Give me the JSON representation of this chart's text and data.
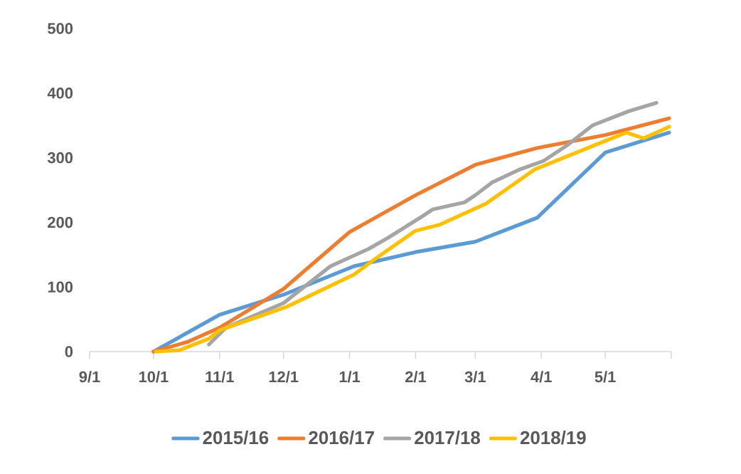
{
  "chart_data": {
    "type": "line",
    "xlim": [
      "2018-09-01",
      "2019-06-01"
    ],
    "xticks": [
      {
        "value": "2018-09-01",
        "label": "9/1"
      },
      {
        "value": "2018-10-01",
        "label": "10/1"
      },
      {
        "value": "2018-11-01",
        "label": "11/1"
      },
      {
        "value": "2018-12-01",
        "label": "12/1"
      },
      {
        "value": "2019-01-01",
        "label": "1/1"
      },
      {
        "value": "2019-02-01",
        "label": "2/1"
      },
      {
        "value": "2019-03-01",
        "label": "3/1"
      },
      {
        "value": "2019-04-01",
        "label": "4/1"
      },
      {
        "value": "2019-05-01",
        "label": "5/1"
      },
      {
        "value": "2019-06-01",
        "label": null
      }
    ],
    "ylim": [
      0,
      500
    ],
    "yticks": [
      0,
      100,
      200,
      300,
      400,
      500
    ],
    "legend": "bottom",
    "series": [
      {
        "name": "2015/16",
        "color": "#5b9bd5",
        "x": [
          "2018-10-01",
          "2018-11-01",
          "2018-12-01",
          "2019-01-03",
          "2019-02-01",
          "2019-03-01",
          "2019-03-30",
          "2019-05-01",
          "2019-05-31"
        ],
        "values": [
          0,
          57,
          88,
          132,
          154,
          170,
          207,
          308,
          339
        ]
      },
      {
        "name": "2016/17",
        "color": "#ed7d31",
        "x": [
          "2018-10-01",
          "2018-10-17",
          "2018-11-01",
          "2018-12-01",
          "2019-01-01",
          "2019-02-01",
          "2019-03-01",
          "2019-03-30",
          "2019-05-01",
          "2019-05-31"
        ],
        "values": [
          0,
          15,
          37,
          97,
          185,
          242,
          289,
          315,
          335,
          361
        ]
      },
      {
        "name": "2017/18",
        "color": "#a5a5a5",
        "x": [
          "2018-10-27",
          "2018-11-04",
          "2018-12-01",
          "2018-12-23",
          "2019-01-10",
          "2019-01-19",
          "2019-02-04",
          "2019-02-09",
          "2019-02-24",
          "2019-03-01",
          "2019-03-09",
          "2019-03-22",
          "2019-04-02",
          "2019-04-13",
          "2019-04-25",
          "2019-05-12",
          "2019-05-25"
        ],
        "values": [
          11,
          37,
          75,
          132,
          159,
          176,
          209,
          220,
          231,
          242,
          262,
          282,
          295,
          319,
          350,
          372,
          385
        ]
      },
      {
        "name": "2018/19",
        "color": "#ffc000",
        "x": [
          "2018-10-02",
          "2018-10-13",
          "2018-10-27",
          "2018-11-01",
          "2018-12-03",
          "2019-01-03",
          "2019-01-12",
          "2019-02-01",
          "2019-02-12",
          "2019-03-06",
          "2019-03-29",
          "2019-05-01",
          "2019-05-11",
          "2019-05-19",
          "2019-05-31"
        ],
        "values": [
          0,
          2,
          20,
          33,
          70,
          119,
          141,
          187,
          196,
          229,
          282,
          326,
          339,
          330,
          348
        ]
      }
    ]
  }
}
